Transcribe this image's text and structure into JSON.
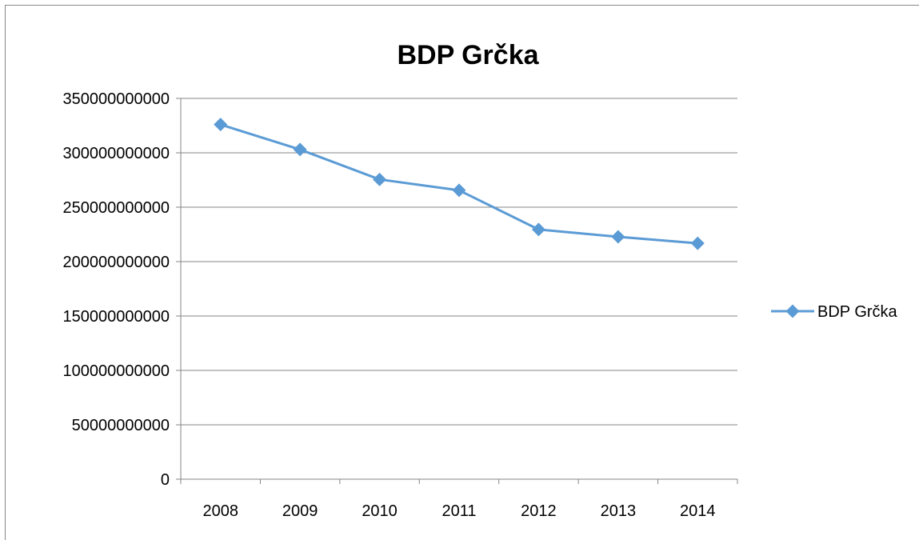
{
  "chart_data": {
    "type": "line",
    "title": "BDP Grčka",
    "xlabel": "",
    "ylabel": "",
    "categories": [
      "2008",
      "2009",
      "2010",
      "2011",
      "2012",
      "2013",
      "2014"
    ],
    "series": [
      {
        "name": "BDP Grčka",
        "values": [
          326000000000,
          303000000000,
          275500000000,
          265500000000,
          229500000000,
          222800000000,
          216800000000
        ]
      }
    ],
    "ylim": [
      0,
      350000000000
    ],
    "y_ticks": [
      "0",
      "50000000000",
      "100000000000",
      "150000000000",
      "200000000000",
      "250000000000",
      "300000000000",
      "350000000000"
    ],
    "grid": true,
    "legend_position": "right",
    "colors": {
      "series": "#5b9bd5",
      "grid": "#868686",
      "axis": "#868686"
    }
  }
}
